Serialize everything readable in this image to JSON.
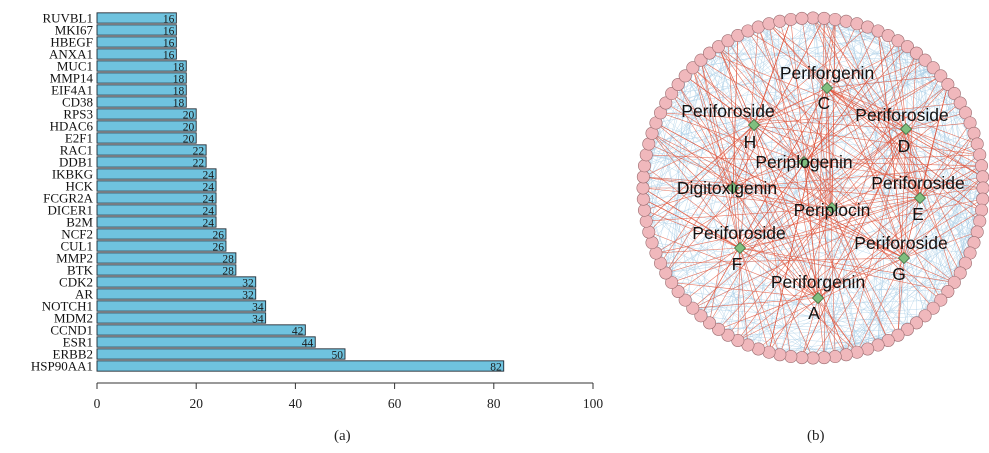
{
  "panels": {
    "a_label": "(a)",
    "b_label": "(b)"
  },
  "chart_data": [
    {
      "type": "bar",
      "orientation": "horizontal",
      "categories": [
        "RUVBL1",
        "MKI67",
        "HBEGF",
        "ANXA1",
        "MUC1",
        "MMP14",
        "EIF4A1",
        "CD38",
        "RPS3",
        "HDAC6",
        "E2F1",
        "RAC1",
        "DDB1",
        "IKBKG",
        "HCK",
        "FCGR2A",
        "DICER1",
        "B2M",
        "NCF2",
        "CUL1",
        "MMP2",
        "BTK",
        "CDK2",
        "AR",
        "NOTCH1",
        "MDM2",
        "CCND1",
        "ESR1",
        "ERBB2",
        "HSP90AA1"
      ],
      "values": [
        16,
        16,
        16,
        16,
        18,
        18,
        18,
        18,
        20,
        20,
        20,
        22,
        22,
        24,
        24,
        24,
        24,
        24,
        26,
        26,
        28,
        28,
        32,
        32,
        34,
        34,
        42,
        44,
        50,
        82
      ],
      "xlim": [
        0,
        100
      ],
      "xticks": [
        0,
        20,
        40,
        60,
        80,
        100
      ],
      "bar_color": "#6fc3df",
      "grid": false,
      "title": "",
      "xlabel": "",
      "ylabel": ""
    }
  ],
  "network": {
    "hub_labels": [
      {
        "id": "C",
        "name": "Periforgenin",
        "letter": "C"
      },
      {
        "id": "H",
        "name": "Periforoside",
        "letter": "H"
      },
      {
        "id": "D",
        "name": "Periforoside",
        "letter": "D"
      },
      {
        "id": "P1",
        "name": "Periplogenin",
        "letter": ""
      },
      {
        "id": "DG",
        "name": "Digitoxigenin",
        "letter": ""
      },
      {
        "id": "E",
        "name": "Periforoside",
        "letter": "E"
      },
      {
        "id": "P2",
        "name": "Periplocin",
        "letter": ""
      },
      {
        "id": "F",
        "name": "Periforoside",
        "letter": "F"
      },
      {
        "id": "G",
        "name": "Periforoside",
        "letter": "G"
      },
      {
        "id": "A",
        "name": "Periforgenin",
        "letter": "A"
      }
    ],
    "target_count": 96,
    "hub_color": "#7fbf7f",
    "target_color": "#f0b8bc",
    "edge_color_hub": "#e0533a",
    "edge_color_ppi": "#a8cde6"
  }
}
